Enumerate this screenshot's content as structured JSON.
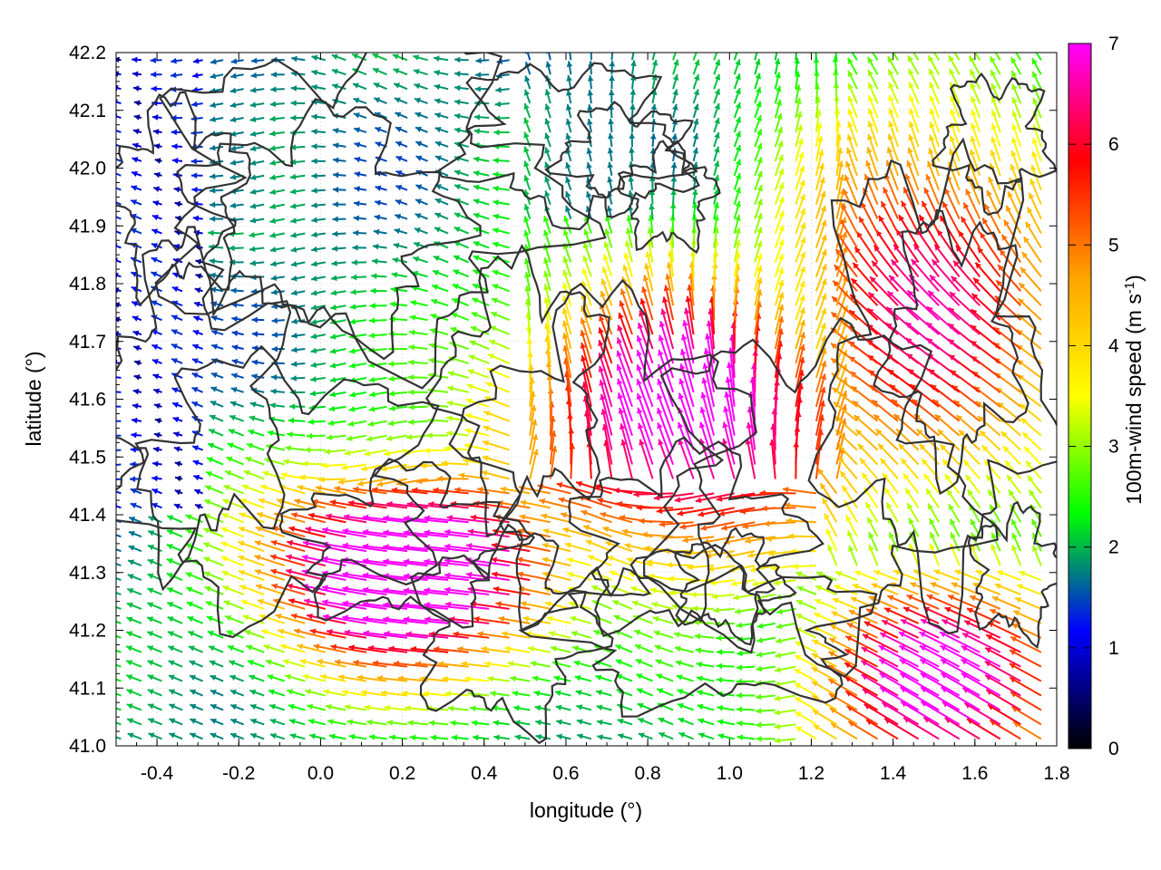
{
  "chart_data": {
    "type": "vector-field",
    "xlabel": "longitude (°)",
    "ylabel": "latitude (°)",
    "xlim": [
      -0.5,
      1.8
    ],
    "ylim": [
      41.0,
      42.2
    ],
    "xticks": [
      "-0.4",
      "-0.2",
      "0.0",
      "0.2",
      "0.4",
      "0.6",
      "0.8",
      "1.0",
      "1.2",
      "1.4",
      "1.6",
      "1.8"
    ],
    "xtick_values": [
      -0.4,
      -0.2,
      0.0,
      0.2,
      0.4,
      0.6,
      0.8,
      1.0,
      1.2,
      1.4,
      1.6,
      1.8
    ],
    "yticks": [
      "41.0",
      "41.1",
      "41.2",
      "41.3",
      "41.4",
      "41.5",
      "41.6",
      "41.7",
      "41.8",
      "41.9",
      "42.0",
      "42.1",
      "42.2"
    ],
    "ytick_values": [
      41.0,
      41.1,
      41.2,
      41.3,
      41.4,
      41.5,
      41.6,
      41.7,
      41.8,
      41.9,
      42.0,
      42.1,
      42.2
    ],
    "grid": true,
    "colorbar": {
      "label_main": "100m-wind speed (m s",
      "label_sup": "-1",
      "label_end": ")",
      "range": [
        0,
        7
      ],
      "ticks": [
        "0",
        "1",
        "2",
        "3",
        "4",
        "5",
        "6",
        "7"
      ],
      "tick_values": [
        0,
        1,
        2,
        3,
        4,
        5,
        6,
        7
      ],
      "colormap": [
        "#000000",
        "#0000ff",
        "#00ff00",
        "#ffff00",
        "#ffa500",
        "#ff0000",
        "#ff00ff"
      ]
    },
    "contour_color": "#333333"
  }
}
